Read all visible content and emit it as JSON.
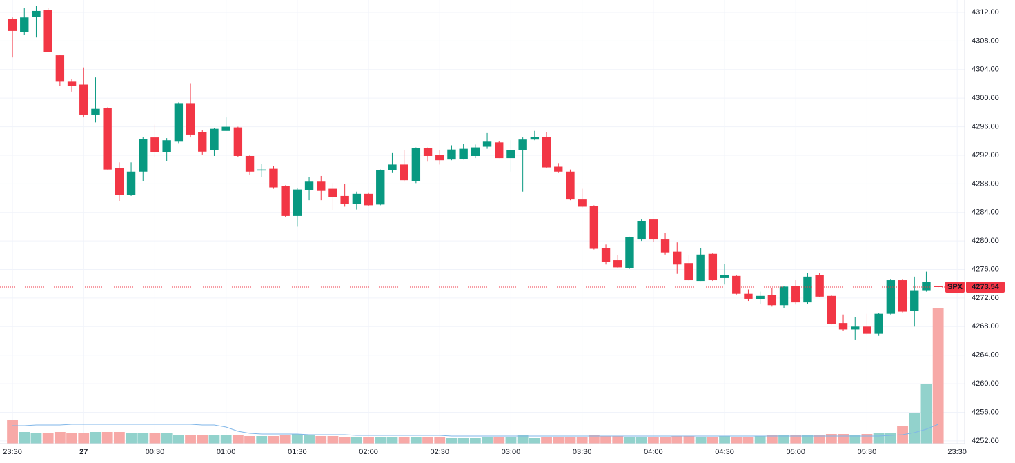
{
  "chart_data": {
    "type": "candlestick",
    "series": [
      {
        "name": "SPX",
        "up_color": "#089981",
        "down_color": "#f23645",
        "open": [
          4311.1,
          4309.2,
          4311.4,
          4312.3,
          4306.0,
          4302.3,
          4301.9,
          4297.7,
          4298.6,
          4290.2,
          4286.4,
          4289.7,
          4294.5,
          4292.4,
          4293.9,
          4299.3,
          4295.2,
          4292.7,
          4295.4,
          4295.9,
          4291.9,
          4289.9,
          4290.1,
          4287.7,
          4283.5,
          4287.1,
          4288.3,
          4287.3,
          4286.3,
          4285.2,
          4286.6,
          4285.1,
          4289.9,
          4290.7,
          4288.4,
          4293.0,
          4292.0,
          4291.4,
          4291.5,
          4291.9,
          4293.2,
          4293.8,
          4291.6,
          4292.7,
          4294.2,
          4294.6,
          4290.4,
          4289.7,
          4285.8,
          4284.9,
          4279.0,
          4277.3,
          4276.2,
          4280.2,
          4283.0,
          4280.2,
          4278.5,
          4276.9,
          4274.4,
          4278.2,
          4274.8,
          4275.1,
          4272.6,
          4271.8,
          4272.4,
          4271.0,
          4273.7,
          4271.4,
          4275.2,
          4272.3,
          4268.5,
          4267.6,
          4268.0,
          4267.0,
          4269.8,
          4274.5,
          4270.2,
          4273.0,
          4273.7
        ],
        "high": [
          4311.3,
          4312.6,
          4312.9,
          4312.6,
          4306.1,
          4302.7,
          4304.3,
          4302.9,
          4298.7,
          4291.0,
          4291.0,
          4294.6,
          4296.3,
          4294.4,
          4299.4,
          4302.0,
          4295.5,
          4295.8,
          4297.3,
          4296.0,
          4292.0,
          4290.8,
          4290.5,
          4287.8,
          4287.4,
          4289.0,
          4289.1,
          4288.1,
          4288.0,
          4286.9,
          4286.8,
          4290.0,
          4292.3,
          4292.7,
          4293.1,
          4293.1,
          4292.7,
          4293.4,
          4293.6,
          4293.5,
          4295.1,
          4294.0,
          4294.1,
          4294.5,
          4295.4,
          4295.2,
          4290.9,
          4290.0,
          4287.3,
          4285.0,
          4279.5,
          4278.0,
          4280.6,
          4283.0,
          4283.1,
          4281.1,
          4279.8,
          4278.0,
          4279.0,
          4278.3,
          4276.8,
          4275.2,
          4273.2,
          4272.9,
          4273.4,
          4273.7,
          4274.5,
          4275.5,
          4275.5,
          4272.4,
          4269.7,
          4269.3,
          4269.8,
          4269.9,
          4274.6,
          4274.6,
          4275.0,
          4275.7,
          4273.7
        ],
        "low": [
          4305.7,
          4308.9,
          4308.5,
          4306.4,
          4301.7,
          4300.9,
          4297.3,
          4296.6,
          4290.0,
          4285.6,
          4286.3,
          4288.4,
          4291.7,
          4291.2,
          4293.7,
          4294.5,
          4292.1,
          4291.9,
          4295.4,
          4291.8,
          4289.3,
          4289.0,
          4287.3,
          4283.4,
          4282.0,
          4285.7,
          4285.7,
          4284.3,
          4284.8,
          4284.4,
          4284.9,
          4285.0,
          4289.6,
          4288.3,
          4288.1,
          4291.1,
          4290.7,
          4291.3,
          4291.4,
          4291.6,
          4292.9,
          4291.6,
          4289.7,
          4286.9,
          4294.1,
          4290.2,
          4289.6,
          4285.7,
          4284.7,
          4278.8,
          4276.7,
          4276.2,
          4276.1,
          4280.0,
          4279.9,
          4278.1,
          4275.4,
          4274.4,
          4274.4,
          4274.4,
          4273.9,
          4272.5,
          4271.6,
          4271.2,
          4270.8,
          4270.6,
          4271.1,
          4271.2,
          4272.1,
          4268.3,
          4267.4,
          4266.1,
          4266.8,
          4266.7,
          4269.7,
          4270.0,
          4268.0,
          4272.9,
          4273.5
        ],
        "close": [
          4309.4,
          4311.3,
          4312.2,
          4306.4,
          4302.3,
          4301.7,
          4297.7,
          4298.5,
          4290.0,
          4286.4,
          4289.7,
          4294.3,
          4292.4,
          4294.1,
          4299.3,
          4294.9,
          4292.5,
          4295.7,
          4296.0,
          4291.9,
          4289.7,
          4290.0,
          4287.5,
          4283.5,
          4287.2,
          4288.3,
          4287.0,
          4286.1,
          4285.2,
          4286.6,
          4285.0,
          4289.9,
          4290.7,
          4288.5,
          4293.0,
          4291.9,
          4291.3,
          4292.8,
          4292.9,
          4293.1,
          4293.9,
          4291.6,
          4292.7,
          4294.2,
          4294.6,
          4290.3,
          4289.7,
          4285.8,
          4284.8,
          4278.9,
          4277.1,
          4276.3,
          4280.5,
          4282.8,
          4280.2,
          4278.4,
          4276.7,
          4274.5,
          4278.1,
          4274.5,
          4275.2,
          4272.6,
          4271.9,
          4272.3,
          4271.0,
          4273.6,
          4271.4,
          4275.0,
          4272.2,
          4268.4,
          4267.6,
          4268.0,
          4267.0,
          4269.8,
          4274.5,
          4270.1,
          4273.0,
          4274.3,
          4273.54
        ]
      }
    ],
    "volume": {
      "up_color": "#92d2cc",
      "down_color": "#f7a9a7",
      "ylim": [
        0,
        200
      ],
      "values": [
        35,
        17,
        15,
        15,
        17,
        15,
        16,
        17,
        17,
        17,
        16,
        15,
        15,
        15,
        13,
        13,
        13,
        13,
        12,
        12,
        11,
        11,
        11,
        12,
        14,
        12,
        11,
        11,
        10,
        10,
        10,
        9,
        10,
        10,
        9,
        9,
        9,
        8,
        8,
        8,
        9,
        9,
        10,
        12,
        8,
        9,
        10,
        10,
        10,
        12,
        11,
        11,
        10,
        10,
        10,
        10,
        11,
        11,
        10,
        10,
        11,
        10,
        10,
        11,
        12,
        12,
        13,
        13,
        13,
        14,
        14,
        12,
        14,
        16,
        16,
        25,
        44,
        86,
        196
      ],
      "ma": {
        "color": "#7fb6e8",
        "values": [
          26,
          26,
          27,
          27,
          27,
          28,
          28,
          28,
          28,
          28,
          28,
          28,
          28,
          28,
          28,
          28,
          27,
          27,
          24,
          18,
          15,
          14,
          14,
          14,
          14,
          13,
          13,
          13,
          13,
          12,
          12,
          12,
          12,
          12,
          12,
          12,
          12,
          11,
          11,
          11,
          11,
          11,
          11,
          11,
          11,
          11,
          11,
          11,
          11,
          11,
          11,
          11,
          11,
          11,
          11,
          11,
          11,
          11,
          11,
          11,
          11,
          11,
          11,
          11,
          11,
          11,
          11,
          11,
          11,
          11,
          11,
          11,
          11,
          11,
          12,
          13,
          16,
          21,
          28
        ]
      }
    },
    "xlim": [
      -1.05,
      80.23
    ],
    "ylim": [
      4251.6,
      4313.74
    ],
    "xticks": [
      {
        "value": 0,
        "label": "23:30"
      },
      {
        "value": 6,
        "label": "27"
      },
      {
        "value": 12,
        "label": "00:30"
      },
      {
        "value": 18,
        "label": "01:00"
      },
      {
        "value": 24,
        "label": "01:30"
      },
      {
        "value": 30,
        "label": "02:00"
      },
      {
        "value": 36,
        "label": "02:30"
      },
      {
        "value": 42,
        "label": "03:00"
      },
      {
        "value": 48,
        "label": "03:30"
      },
      {
        "value": 54,
        "label": "04:00"
      },
      {
        "value": 60,
        "label": "04:30"
      },
      {
        "value": 66,
        "label": "05:00"
      },
      {
        "value": 72,
        "label": "05:30"
      },
      {
        "value": 79.6,
        "label": "23:30"
      }
    ],
    "yticks": [
      {
        "value": 4252,
        "label": "4252.00"
      },
      {
        "value": 4256,
        "label": "4256.00"
      },
      {
        "value": 4260,
        "label": "4260.00"
      },
      {
        "value": 4264,
        "label": "4264.00"
      },
      {
        "value": 4268,
        "label": "4268.00"
      },
      {
        "value": 4272,
        "label": "4272.00"
      },
      {
        "value": 4276,
        "label": "4276.00"
      },
      {
        "value": 4280,
        "label": "4280.00"
      },
      {
        "value": 4284,
        "label": "4284.00"
      },
      {
        "value": 4288,
        "label": "4288.00"
      },
      {
        "value": 4292,
        "label": "4292.00"
      },
      {
        "value": 4296,
        "label": "4296.00"
      },
      {
        "value": 4300,
        "label": "4300.00"
      },
      {
        "value": 4304,
        "label": "4304.00"
      },
      {
        "value": 4308,
        "label": "4308.00"
      },
      {
        "value": 4312,
        "label": "4312.00"
      }
    ],
    "grid": true
  }
}
